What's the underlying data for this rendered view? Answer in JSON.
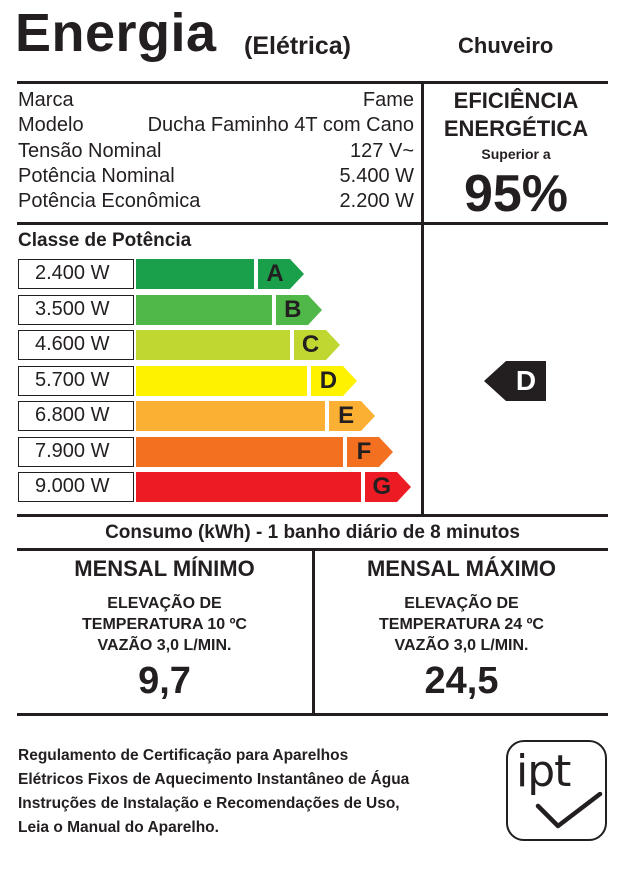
{
  "header": {
    "title": "Energia",
    "subtitle": "(Elétrica)",
    "product": "Chuveiro"
  },
  "specs": [
    {
      "label": "Marca",
      "value": "Fame"
    },
    {
      "label": "Modelo",
      "value": "Ducha Faminho 4T com Cano"
    },
    {
      "label": "Tensão Nominal",
      "value": "127 V~"
    },
    {
      "label": "Potência Nominal",
      "value": "5.400 W"
    },
    {
      "label": "Potência Econômica",
      "value": "2.200 W"
    }
  ],
  "efficiency": {
    "title_line1": "EFICIÊNCIA",
    "title_line2": "ENERGÉTICA",
    "note": "Superior a",
    "value": "95%"
  },
  "power_class": {
    "title": "Classe de Potência",
    "bands": [
      {
        "watts": "2.400 W",
        "letter": "A",
        "color": "#1a9f4a"
      },
      {
        "watts": "3.500 W",
        "letter": "B",
        "color": "#50b848"
      },
      {
        "watts": "4.600 W",
        "letter": "C",
        "color": "#bfd730"
      },
      {
        "watts": "5.700 W",
        "letter": "D",
        "color": "#fff200"
      },
      {
        "watts": "6.800 W",
        "letter": "E",
        "color": "#fbb034"
      },
      {
        "watts": "7.900 W",
        "letter": "F",
        "color": "#f37021"
      },
      {
        "watts": "9.000 W",
        "letter": "G",
        "color": "#ed1c24"
      }
    ],
    "current_class": "D"
  },
  "consumption": {
    "title": "Consumo (kWh) - 1 banho diário de 8 minutos",
    "min": {
      "title": "MENSAL MÍNIMO",
      "line1": "ELEVAÇÃO DE",
      "line2": "TEMPERATURA 10 ºC",
      "line3": "VAZÃO 3,0 L/MIN.",
      "value": "9,7"
    },
    "max": {
      "title": "MENSAL MÁXIMO",
      "line1": "ELEVAÇÃO DE",
      "line2": "TEMPERATURA 24 ºC",
      "line3": "VAZÃO 3,0 L/MIN.",
      "value": "24,5"
    }
  },
  "footer": {
    "lines": [
      "Regulamento de Certificação para Aparelhos",
      "Elétricos Fixos de Aquecimento Instantâneo de Água",
      "Instruções de Instalação e Recomendações de Uso,",
      "Leia o Manual do Aparelho."
    ],
    "logo_text": "ipt"
  }
}
